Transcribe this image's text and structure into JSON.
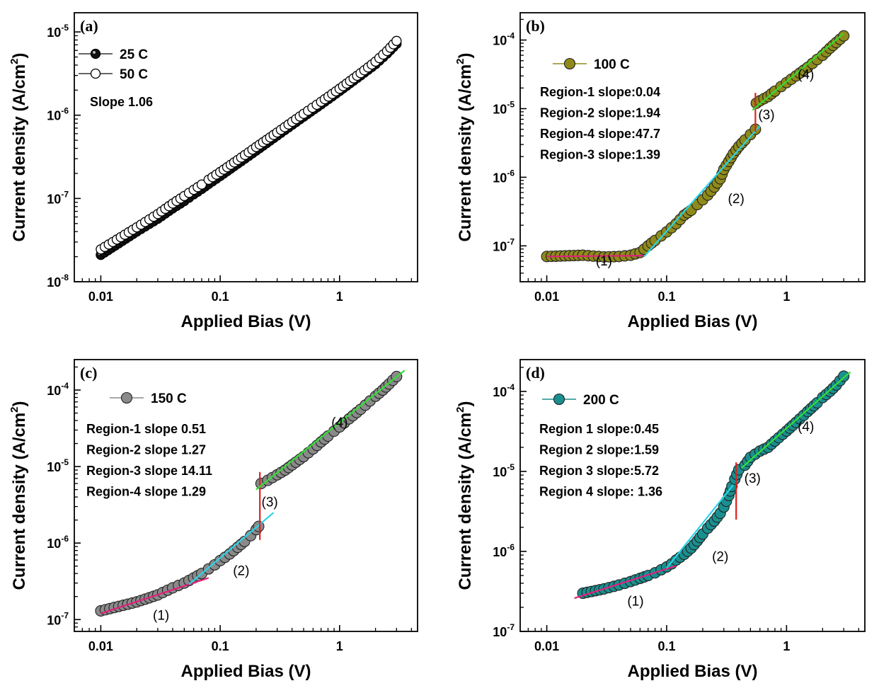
{
  "chart_data": [
    {
      "id": "a",
      "type": "scatter",
      "title": "(a)",
      "xlabel": "Applied Bias (V)",
      "ylabel": "Current density (A/cm²)",
      "xscale": "log",
      "yscale": "log",
      "xlim": [
        0.006,
        4.5
      ],
      "ylim": [
        1e-08,
        1.7e-05
      ],
      "yticks": [
        {
          "mant": "10",
          "exp": "-8",
          "value": 1e-08
        },
        {
          "mant": "10",
          "exp": "-7",
          "value": 1e-07
        },
        {
          "mant": "10",
          "exp": "-6",
          "value": 1e-06
        },
        {
          "mant": "10",
          "exp": "-5",
          "value": 1e-05
        }
      ],
      "xticks": [
        {
          "label": "0.01",
          "value": 0.01
        },
        {
          "label": "0.1",
          "value": 0.1
        },
        {
          "label": "1",
          "value": 1
        }
      ],
      "legend": {
        "position": "top-left",
        "entries": [
          "25 C",
          "50 C"
        ]
      },
      "annotations": [
        "Slope 1.06"
      ],
      "series": [
        {
          "name": "25 C",
          "marker": "half-filled",
          "color": "#000000",
          "connected": true,
          "points": [
            [
              0.01,
              2.1e-08
            ],
            [
              0.02,
              4e-08
            ],
            [
              0.03,
              5.7e-08
            ],
            [
              0.04,
              7.6e-08
            ],
            [
              0.05,
              9.3e-08
            ],
            [
              0.06,
              1.12e-07
            ],
            [
              0.07,
              1.3e-07
            ],
            [
              0.08,
              1.49e-07
            ],
            [
              0.1,
              1.86e-07
            ],
            [
              0.15,
              2.8e-07
            ],
            [
              0.2,
              3.75e-07
            ],
            [
              0.3,
              5.7e-07
            ],
            [
              0.5,
              9.6e-07
            ],
            [
              0.7,
              1.35e-06
            ],
            [
              1.0,
              1.95e-06
            ],
            [
              1.5,
              3e-06
            ],
            [
              2.0,
              4.1e-06
            ],
            [
              2.5,
              5.5e-06
            ],
            [
              3.0,
              7.2e-06
            ]
          ]
        },
        {
          "name": "50 C",
          "marker": "open",
          "color": "#000000",
          "connected": true,
          "points": [
            [
              0.01,
              2.45e-08
            ],
            [
              0.02,
              4.5e-08
            ],
            [
              0.03,
              6.5e-08
            ],
            [
              0.04,
              8.7e-08
            ],
            [
              0.05,
              1.07e-07
            ],
            [
              0.06,
              1.27e-07
            ],
            [
              0.07,
              1.47e-07
            ],
            [
              0.08,
              1.68e-07
            ],
            [
              0.1,
              2.08e-07
            ],
            [
              0.15,
              3.1e-07
            ],
            [
              0.2,
              4.15e-07
            ],
            [
              0.3,
              6.2e-07
            ],
            [
              0.5,
              1.04e-06
            ],
            [
              0.7,
              1.45e-06
            ],
            [
              1.0,
              2.08e-06
            ],
            [
              1.5,
              3.2e-06
            ],
            [
              2.0,
              4.4e-06
            ],
            [
              2.5,
              5.9e-06
            ],
            [
              3.0,
              7.8e-06
            ]
          ]
        }
      ],
      "fits": []
    },
    {
      "id": "b",
      "type": "scatter",
      "title": "(b)",
      "xlabel": "Applied Bias (V)",
      "ylabel": "Current density (A/cm²)",
      "xscale": "log",
      "yscale": "log",
      "xlim": [
        0.006,
        4.5
      ],
      "ylim": [
        3e-08,
        0.00025
      ],
      "yticks": [
        {
          "mant": "10",
          "exp": "-7",
          "value": 1e-07
        },
        {
          "mant": "10",
          "exp": "-6",
          "value": 1e-06
        },
        {
          "mant": "10",
          "exp": "-5",
          "value": 1e-05
        },
        {
          "mant": "10",
          "exp": "-4",
          "value": 0.0001
        }
      ],
      "xticks": [
        {
          "label": "0.01",
          "value": 0.01
        },
        {
          "label": "0.1",
          "value": 0.1
        },
        {
          "label": "1",
          "value": 1
        }
      ],
      "legend": {
        "position": "top-left",
        "entries": [
          "100 C"
        ]
      },
      "annotations": [
        "Region-1 slope:0.04",
        "Region-2 slope:1.94",
        "Region-4 slope:47.7",
        "Region-3 slope:1.39"
      ],
      "region_labels": [
        {
          "text": "(1)",
          "x": 0.03,
          "y": 5.2e-08
        },
        {
          "text": "(2)",
          "x": 0.38,
          "y": 4.2e-07
        },
        {
          "text": "(3)",
          "x": 0.68,
          "y": 7e-06
        },
        {
          "text": "(4)",
          "x": 1.45,
          "y": 2.7e-05
        }
      ],
      "series": [
        {
          "name": "100 C",
          "marker": "filled",
          "color": "#8f8a1a",
          "connected": false,
          "points": [
            [
              0.01,
              7e-08
            ],
            [
              0.02,
              7.3e-08
            ],
            [
              0.03,
              6.9e-08
            ],
            [
              0.04,
              7e-08
            ],
            [
              0.05,
              7.3e-08
            ],
            [
              0.06,
              8e-08
            ],
            [
              0.07,
              1e-07
            ],
            [
              0.08,
              1.2e-07
            ],
            [
              0.09,
              1.4e-07
            ],
            [
              0.1,
              1.6e-07
            ],
            [
              0.12,
              2.1e-07
            ],
            [
              0.14,
              2.8e-07
            ],
            [
              0.16,
              3.3e-07
            ],
            [
              0.18,
              4e-07
            ],
            [
              0.2,
              4.7e-07
            ],
            [
              0.22,
              5.5e-07
            ],
            [
              0.25,
              7.2e-07
            ],
            [
              0.28,
              9.5e-07
            ],
            [
              0.3,
              1.3e-06
            ],
            [
              0.33,
              1.7e-06
            ],
            [
              0.36,
              2.2e-06
            ],
            [
              0.4,
              2.8e-06
            ],
            [
              0.45,
              3.5e-06
            ],
            [
              0.5,
              4.2e-06
            ],
            [
              0.55,
              5e-06
            ],
            [
              0.56,
              1.2e-05
            ],
            [
              0.6,
              1.3e-05
            ],
            [
              0.7,
              1.5e-05
            ],
            [
              0.8,
              1.8e-05
            ],
            [
              0.9,
              2.1e-05
            ],
            [
              1.0,
              2.4e-05
            ],
            [
              1.2,
              3e-05
            ],
            [
              1.5,
              4e-05
            ],
            [
              1.8,
              5.2e-05
            ],
            [
              2.0,
              6e-05
            ],
            [
              2.3,
              7.6e-05
            ],
            [
              2.6,
              9.2e-05
            ],
            [
              3.0,
              0.000115
            ]
          ]
        }
      ],
      "fits": [
        {
          "color": "#e0217b",
          "x": [
            0.01,
            0.065
          ],
          "y": [
            7e-08,
            7.2e-08
          ]
        },
        {
          "color": "#2ad4e8",
          "x": [
            0.065,
            0.6
          ],
          "y": [
            7e-08,
            5.6e-06
          ]
        },
        {
          "color": "#e02020",
          "x": [
            0.55,
            0.55
          ],
          "y": [
            4.6e-06,
            1.7e-05
          ]
        },
        {
          "color": "#33dd33",
          "x": [
            0.52,
            3.0
          ],
          "y": [
            9.5e-06,
            0.000125
          ]
        }
      ]
    },
    {
      "id": "c",
      "type": "scatter",
      "title": "(c)",
      "xlabel": "Applied Bias (V)",
      "ylabel": "Current density (A/cm²)",
      "xscale": "log",
      "yscale": "log",
      "xlim": [
        0.006,
        4.5
      ],
      "ylim": [
        7e-08,
        0.00025
      ],
      "yticks": [
        {
          "mant": "10",
          "exp": "-7",
          "value": 1e-07
        },
        {
          "mant": "10",
          "exp": "-6",
          "value": 1e-06
        },
        {
          "mant": "10",
          "exp": "-5",
          "value": 1e-05
        },
        {
          "mant": "10",
          "exp": "-4",
          "value": 0.0001
        }
      ],
      "xticks": [
        {
          "label": "0.01",
          "value": 0.01
        },
        {
          "label": "0.1",
          "value": 0.1
        },
        {
          "label": "1",
          "value": 1
        }
      ],
      "legend": {
        "position": "top-left",
        "entries": [
          "150 C"
        ]
      },
      "annotations": [
        "Region-1 slope 0.51",
        "Region-2 slope 1.27",
        "Region-3 slope 14.11",
        "Region-4 slope 1.29"
      ],
      "region_labels": [
        {
          "text": "(1)",
          "x": 0.032,
          "y": 1e-07
        },
        {
          "text": "(2)",
          "x": 0.15,
          "y": 3.8e-07
        },
        {
          "text": "(3)",
          "x": 0.26,
          "y": 3e-06
        },
        {
          "text": "(4)",
          "x": 1.0,
          "y": 3.3e-05
        }
      ],
      "series": [
        {
          "name": "150 C",
          "marker": "filled",
          "color": "#8a8a8a",
          "connected": false,
          "points": [
            [
              0.01,
              1.3e-07
            ],
            [
              0.02,
              1.7e-07
            ],
            [
              0.03,
              2.1e-07
            ],
            [
              0.04,
              2.6e-07
            ],
            [
              0.05,
              3e-07
            ],
            [
              0.06,
              3.5e-07
            ],
            [
              0.07,
              4e-07
            ],
            [
              0.08,
              4.6e-07
            ],
            [
              0.09,
              5.2e-07
            ],
            [
              0.1,
              5.9e-07
            ],
            [
              0.12,
              7.2e-07
            ],
            [
              0.14,
              8.8e-07
            ],
            [
              0.16,
              1.05e-06
            ],
            [
              0.18,
              1.25e-06
            ],
            [
              0.2,
              1.5e-06
            ],
            [
              0.21,
              1.65e-06
            ],
            [
              0.22,
              6e-06
            ],
            [
              0.25,
              6.6e-06
            ],
            [
              0.3,
              7.8e-06
            ],
            [
              0.35,
              9e-06
            ],
            [
              0.4,
              1.05e-05
            ],
            [
              0.5,
              1.35e-05
            ],
            [
              0.6,
              1.7e-05
            ],
            [
              0.7,
              2.1e-05
            ],
            [
              0.8,
              2.5e-05
            ],
            [
              0.9,
              2.9e-05
            ],
            [
              1.0,
              3.3e-05
            ],
            [
              1.2,
              4.2e-05
            ],
            [
              1.5,
              5.6e-05
            ],
            [
              1.8,
              7.2e-05
            ],
            [
              2.0,
              8.3e-05
            ],
            [
              2.3,
              0.0001
            ],
            [
              2.6,
              0.00012
            ],
            [
              3.0,
              0.00015
            ]
          ]
        }
      ],
      "fits": [
        {
          "color": "#e0217b",
          "x": [
            0.01,
            0.08
          ],
          "y": [
            1.2e-07,
            3.5e-07
          ]
        },
        {
          "color": "#2ad4e8",
          "x": [
            0.055,
            0.28
          ],
          "y": [
            2.9e-07,
            2.5e-06
          ]
        },
        {
          "color": "#e02020",
          "x": [
            0.215,
            0.215
          ],
          "y": [
            1.1e-06,
            8.5e-06
          ]
        },
        {
          "color": "#33dd33",
          "x": [
            0.2,
            3.5
          ],
          "y": [
            5e-06,
            0.00018
          ]
        }
      ]
    },
    {
      "id": "d",
      "type": "scatter",
      "title": "(d)",
      "xlabel": "Applied Bias (V)",
      "ylabel": "Current density (A/cm²)",
      "xscale": "log",
      "yscale": "log",
      "xlim": [
        0.006,
        4.5
      ],
      "ylim": [
        1e-07,
        0.00025
      ],
      "yticks": [
        {
          "mant": "10",
          "exp": "-7",
          "value": 1e-07
        },
        {
          "mant": "10",
          "exp": "-6",
          "value": 1e-06
        },
        {
          "mant": "10",
          "exp": "-5",
          "value": 1e-05
        },
        {
          "mant": "10",
          "exp": "-4",
          "value": 0.0001
        }
      ],
      "xticks": [
        {
          "label": "0.01",
          "value": 0.01
        },
        {
          "label": "0.1",
          "value": 0.1
        },
        {
          "label": "1",
          "value": 1
        }
      ],
      "legend": {
        "position": "top-left",
        "entries": [
          "200 C"
        ]
      },
      "annotations": [
        "Region 1 slope:0.45",
        "Region 2 slope:1.59",
        "Region 3 slope:5.72",
        "Region 4 slope: 1.36"
      ],
      "region_labels": [
        {
          "text": "(1)",
          "x": 0.055,
          "y": 2.1e-07
        },
        {
          "text": "(2)",
          "x": 0.28,
          "y": 7.6e-07
        },
        {
          "text": "(3)",
          "x": 0.52,
          "y": 7.2e-06
        },
        {
          "text": "(4)",
          "x": 1.45,
          "y": 3.2e-05
        }
      ],
      "series": [
        {
          "name": "200 C",
          "marker": "filled",
          "color": "#1a8f8f",
          "connected": false,
          "points": [
            [
              0.02,
              3e-07
            ],
            [
              0.03,
              3.4e-07
            ],
            [
              0.04,
              3.8e-07
            ],
            [
              0.05,
              4.2e-07
            ],
            [
              0.06,
              4.6e-07
            ],
            [
              0.07,
              5e-07
            ],
            [
              0.08,
              5.4e-07
            ],
            [
              0.09,
              5.9e-07
            ],
            [
              0.1,
              6.4e-07
            ],
            [
              0.11,
              7e-07
            ],
            [
              0.12,
              7.8e-07
            ],
            [
              0.14,
              9.2e-07
            ],
            [
              0.16,
              1.1e-06
            ],
            [
              0.18,
              1.35e-06
            ],
            [
              0.2,
              1.65e-06
            ],
            [
              0.22,
              1.95e-06
            ],
            [
              0.25,
              2.4e-06
            ],
            [
              0.28,
              3e-06
            ],
            [
              0.3,
              3.6e-06
            ],
            [
              0.33,
              5e-06
            ],
            [
              0.35,
              6.5e-06
            ],
            [
              0.37,
              8e-06
            ],
            [
              0.4,
              1.05e-05
            ],
            [
              0.45,
              1.2e-05
            ],
            [
              0.5,
              1.5e-05
            ],
            [
              0.6,
              1.8e-05
            ],
            [
              0.7,
              2e-05
            ],
            [
              0.8,
              2.4e-05
            ],
            [
              1.0,
              3.2e-05
            ],
            [
              1.2,
              4.1e-05
            ],
            [
              1.5,
              5.6e-05
            ],
            [
              1.8,
              7.2e-05
            ],
            [
              2.0,
              8.4e-05
            ],
            [
              2.3,
              0.0001
            ],
            [
              2.6,
              0.00012
            ],
            [
              3.0,
              0.000155
            ]
          ]
        }
      ],
      "fits": [
        {
          "color": "#e0217b",
          "x": [
            0.017,
            0.12
          ],
          "y": [
            2.6e-07,
            6.6e-07
          ]
        },
        {
          "color": "#2ad4e8",
          "x": [
            0.1,
            0.36
          ],
          "y": [
            6.2e-07,
            6.8e-06
          ]
        },
        {
          "color": "#e02020",
          "x": [
            0.38,
            0.38
          ],
          "y": [
            2.5e-06,
            1.3e-05
          ]
        },
        {
          "color": "#33dd33",
          "x": [
            0.42,
            3.4
          ],
          "y": [
            1.1e-05,
            0.000175
          ]
        }
      ]
    }
  ]
}
